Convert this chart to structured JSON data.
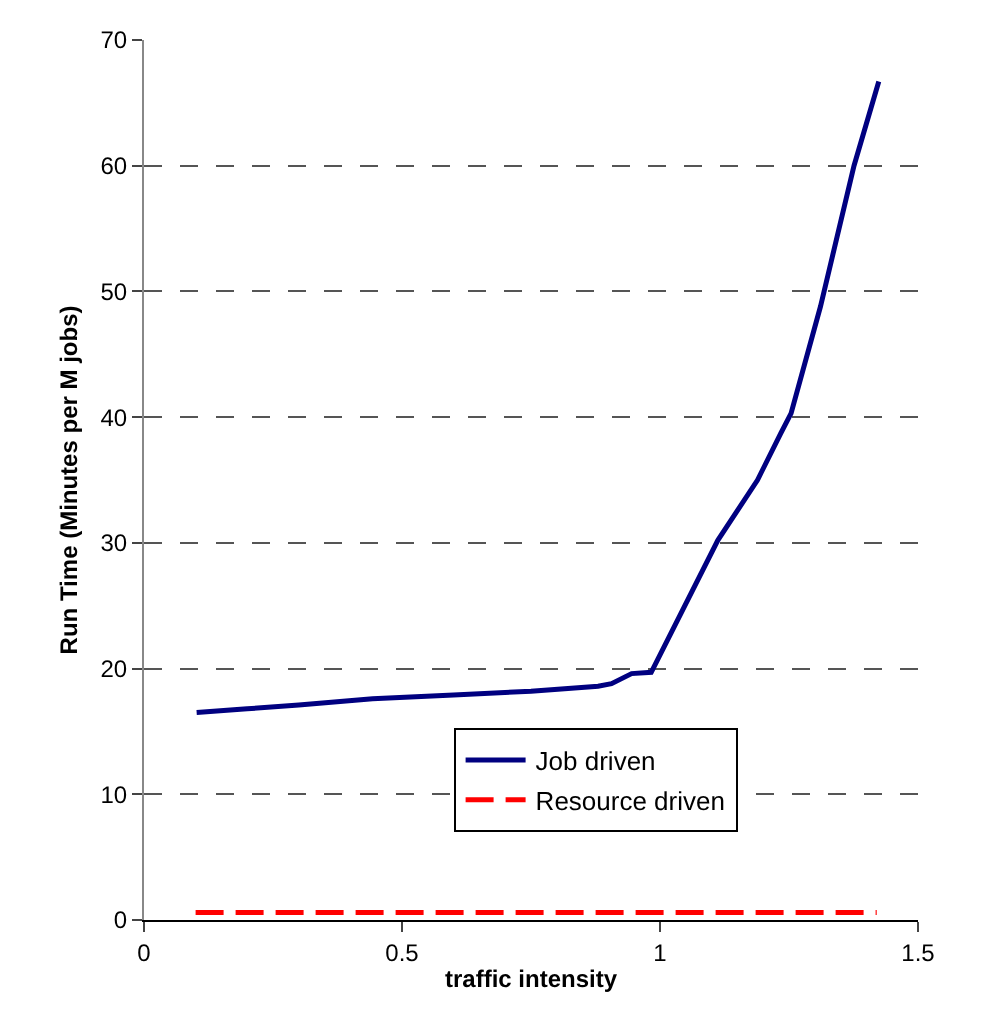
{
  "chart_data": {
    "type": "line",
    "xlabel": "traffic intensity",
    "ylabel": "Run Time (Minutes per M jobs)",
    "xlim": [
      0,
      1.5
    ],
    "xticks": [
      0,
      0.5,
      1,
      1.5
    ],
    "ylim": [
      0,
      70
    ],
    "yticks": [
      0,
      10,
      20,
      30,
      40,
      50,
      60,
      70
    ],
    "grid": "y",
    "legend": "bottom right",
    "marker": "none",
    "series": [
      {
        "name": "Job driven",
        "color": "#000080",
        "line_style": "solid",
        "x": [
          0.102,
          0.2,
          0.3,
          0.443,
          0.6,
          0.75,
          0.88,
          0.906,
          0.945,
          0.983,
          1.112,
          1.189,
          1.234,
          1.254,
          1.311,
          1.376,
          1.424
        ],
        "values": [
          16.5,
          16.8,
          17.1,
          17.6,
          17.9,
          18.2,
          18.6,
          18.8,
          19.6,
          19.7,
          30.2,
          35.0,
          38.7,
          40.3,
          48.8,
          60.0,
          66.7
        ]
      },
      {
        "name": "Resource driven",
        "color": "#ff0000",
        "line_style": "dashed",
        "x": [
          0.1,
          1.42
        ],
        "values": [
          0.6,
          0.6
        ]
      }
    ]
  }
}
